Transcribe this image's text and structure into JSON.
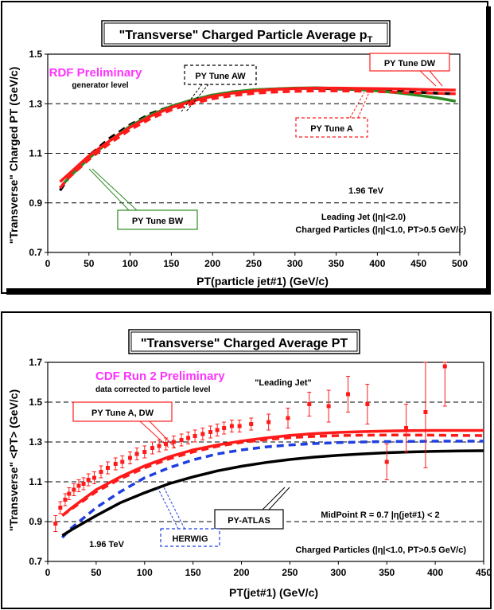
{
  "chart_data": [
    {
      "type": "line",
      "title": "\"Transverse\" Charged Particle Average p",
      "title_subscript": "T",
      "xlabel": "PT(particle jet#1)  (GeV/c)",
      "ylabel": "\"Transverse\" Charged PT (GeV/c)",
      "xlim": [
        0,
        500
      ],
      "ylim": [
        0.7,
        1.5
      ],
      "xticks": [
        "0",
        "50",
        "100",
        "150",
        "200",
        "250",
        "300",
        "350",
        "400",
        "450",
        "500"
      ],
      "yticks": [
        "0.7",
        "0.9",
        "1.1",
        "1.3",
        "1.5"
      ],
      "grid": "horizontal-dashed",
      "annotations": {
        "preliminary": "RDF Preliminary",
        "generator": "generator level",
        "energy": "1.96 TeV",
        "leading_jet": "Leading Jet (|η|<2.0)",
        "charged": "Charged Particles (|η|<1.0, PT>0.5 GeV/c)"
      },
      "colors": {
        "green": "#2e8b22",
        "red": "#ff1a1a",
        "black": "#000000",
        "magenta": "#ff33ff"
      },
      "series": [
        {
          "name": "PY Tune AW",
          "color": "#000000",
          "dash": "dashed",
          "x": [
            15,
            25,
            50,
            75,
            100,
            125,
            150,
            175,
            200,
            225,
            250,
            275,
            300,
            325,
            350,
            375,
            400,
            425,
            450,
            475,
            495
          ],
          "y": [
            0.95,
            1.0,
            1.09,
            1.16,
            1.215,
            1.26,
            1.29,
            1.315,
            1.335,
            1.348,
            1.355,
            1.36,
            1.362,
            1.362,
            1.36,
            1.357,
            1.354,
            1.35,
            1.346,
            1.342,
            1.34
          ]
        },
        {
          "name": "PY Tune BW",
          "color": "#2e8b22",
          "dash": "solid",
          "x": [
            15,
            25,
            50,
            75,
            100,
            125,
            150,
            175,
            200,
            225,
            250,
            275,
            300,
            325,
            350,
            375,
            400,
            425,
            450,
            475,
            495
          ],
          "y": [
            0.96,
            1.0,
            1.08,
            1.15,
            1.21,
            1.255,
            1.29,
            1.315,
            1.335,
            1.348,
            1.356,
            1.36,
            1.363,
            1.364,
            1.362,
            1.358,
            1.352,
            1.344,
            1.334,
            1.322,
            1.31
          ]
        },
        {
          "name": "PY Tune DW",
          "color": "#ff1a1a",
          "dash": "solid",
          "x": [
            15,
            25,
            50,
            75,
            100,
            125,
            150,
            175,
            200,
            225,
            250,
            275,
            300,
            325,
            350,
            375,
            400,
            425,
            450,
            475,
            495
          ],
          "y": [
            0.985,
            1.015,
            1.09,
            1.15,
            1.205,
            1.25,
            1.285,
            1.31,
            1.33,
            1.343,
            1.352,
            1.358,
            1.361,
            1.363,
            1.363,
            1.362,
            1.361,
            1.36,
            1.358,
            1.356,
            1.355
          ]
        },
        {
          "name": "PY Tune A",
          "color": "#ff1a1a",
          "dash": "dashed",
          "x": [
            15,
            25,
            50,
            75,
            100,
            125,
            150,
            175,
            200,
            225,
            250,
            275,
            300,
            325,
            350,
            375,
            400,
            425,
            450,
            475,
            495
          ],
          "y": [
            0.96,
            1.0,
            1.075,
            1.14,
            1.195,
            1.24,
            1.275,
            1.3,
            1.32,
            1.333,
            1.342,
            1.347,
            1.35,
            1.352,
            1.352,
            1.351,
            1.349,
            1.346,
            1.344,
            1.342,
            1.34
          ]
        }
      ]
    },
    {
      "type": "line",
      "title": "\"Transverse\" Charged Average PT",
      "xlabel": "PT(jet#1)  (GeV/c)",
      "ylabel": "\"Transverse\" <PT> (GeV/c)",
      "xlim": [
        0,
        450
      ],
      "ylim": [
        0.7,
        1.7
      ],
      "xticks": [
        "0",
        "50",
        "100",
        "150",
        "200",
        "250",
        "300",
        "350",
        "400",
        "450"
      ],
      "yticks": [
        "0.7",
        "0.9",
        "1.1",
        "1.3",
        "1.5",
        "1.7"
      ],
      "grid": "horizontal-dashed",
      "annotations": {
        "preliminary": "CDF Run 2 Preliminary",
        "corrected": "data corrected to particle level",
        "leading": "\"Leading Jet\"",
        "midpoint": "MidPoint R = 0.7 |η(jet#1) < 2",
        "energy": "1.96 TeV",
        "charged": "Charged Particles (|η|<1.0, PT>0.5 GeV/c)"
      },
      "data_points": {
        "x": [
          8,
          13,
          18,
          22,
          27,
          32,
          37,
          42,
          48,
          55,
          62,
          70,
          77,
          85,
          92,
          100,
          108,
          115,
          122,
          130,
          138,
          145,
          152,
          160,
          168,
          175,
          182,
          190,
          198,
          210,
          228,
          248,
          270,
          290,
          310,
          330,
          350,
          370,
          390,
          410
        ],
        "y": [
          0.89,
          0.97,
          1.01,
          1.04,
          1.06,
          1.08,
          1.09,
          1.11,
          1.12,
          1.15,
          1.17,
          1.19,
          1.2,
          1.22,
          1.24,
          1.25,
          1.27,
          1.28,
          1.29,
          1.3,
          1.31,
          1.32,
          1.33,
          1.34,
          1.35,
          1.36,
          1.37,
          1.38,
          1.38,
          1.39,
          1.4,
          1.42,
          1.49,
          1.48,
          1.54,
          1.49,
          1.2,
          1.37,
          1.45,
          1.68
        ],
        "err": [
          0.04,
          0.03,
          0.03,
          0.03,
          0.03,
          0.03,
          0.03,
          0.03,
          0.03,
          0.03,
          0.03,
          0.03,
          0.03,
          0.03,
          0.03,
          0.03,
          0.03,
          0.03,
          0.03,
          0.03,
          0.03,
          0.03,
          0.03,
          0.03,
          0.03,
          0.03,
          0.03,
          0.03,
          0.03,
          0.03,
          0.04,
          0.05,
          0.06,
          0.08,
          0.09,
          0.1,
          0.09,
          0.12,
          0.28,
          0.2
        ]
      },
      "series": [
        {
          "name": "PY Tune A, DW",
          "color": "#ff1a1a",
          "dash": "solid",
          "x": [
            15,
            25,
            50,
            75,
            100,
            125,
            150,
            175,
            200,
            225,
            250,
            275,
            300,
            325,
            350,
            375,
            400,
            425,
            450
          ],
          "y": [
            0.93,
            0.97,
            1.06,
            1.125,
            1.18,
            1.225,
            1.26,
            1.285,
            1.305,
            1.32,
            1.333,
            1.342,
            1.348,
            1.352,
            1.355,
            1.357,
            1.358,
            1.358,
            1.358
          ]
        },
        {
          "name": "PY Tune A (dashed)",
          "color": "#ff1a1a",
          "dash": "dashed",
          "x": [
            15,
            25,
            50,
            75,
            100,
            125,
            150,
            175,
            200,
            225,
            250,
            275,
            300,
            325,
            350,
            375,
            400,
            425,
            450
          ],
          "y": [
            0.93,
            0.965,
            1.05,
            1.115,
            1.17,
            1.215,
            1.25,
            1.278,
            1.298,
            1.312,
            1.322,
            1.328,
            1.332,
            1.334,
            1.335,
            1.335,
            1.334,
            1.333,
            1.332
          ]
        },
        {
          "name": "HERWIG",
          "color": "#1f3fe0",
          "dash": "dashed",
          "x": [
            15,
            25,
            50,
            75,
            100,
            125,
            150,
            175,
            200,
            225,
            250,
            275,
            300,
            325,
            350,
            375,
            400,
            425,
            450
          ],
          "y": [
            0.82,
            0.87,
            0.97,
            1.05,
            1.12,
            1.17,
            1.21,
            1.24,
            1.26,
            1.275,
            1.285,
            1.292,
            1.297,
            1.3,
            1.302,
            1.303,
            1.304,
            1.304,
            1.304
          ]
        },
        {
          "name": "PY-ATLAS",
          "color": "#000000",
          "dash": "solid",
          "x": [
            15,
            25,
            50,
            75,
            100,
            125,
            150,
            175,
            200,
            225,
            250,
            275,
            300,
            325,
            350,
            375,
            400,
            425,
            450
          ],
          "y": [
            0.83,
            0.86,
            0.93,
            0.995,
            1.045,
            1.09,
            1.125,
            1.155,
            1.178,
            1.197,
            1.212,
            1.224,
            1.233,
            1.24,
            1.246,
            1.25,
            1.253,
            1.255,
            1.256
          ]
        }
      ]
    }
  ]
}
